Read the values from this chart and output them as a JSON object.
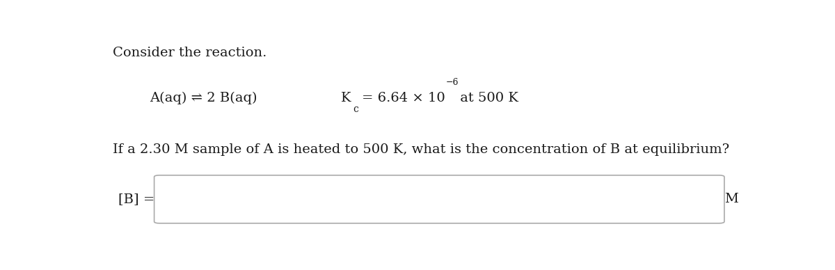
{
  "title": "Consider the reaction.",
  "reaction_text": "A(aq) ⇌ 2 B(aq)",
  "kc_main": "= 6.64 × 10",
  "kc_exponent": "−6",
  "kc_suffix": " at 500 K",
  "question_line": "If a 2.30 M sample of A is heated to 500 K, what is the concentration of B at equilibrium?",
  "answer_label": "[B] =",
  "answer_unit": "M",
  "bg_color": "#ffffff",
  "text_color": "#1a1a1a",
  "box_facecolor": "#ffffff",
  "box_edgecolor": "#aaaaaa",
  "font_size": 14,
  "font_size_small": 10,
  "font_size_super": 9
}
